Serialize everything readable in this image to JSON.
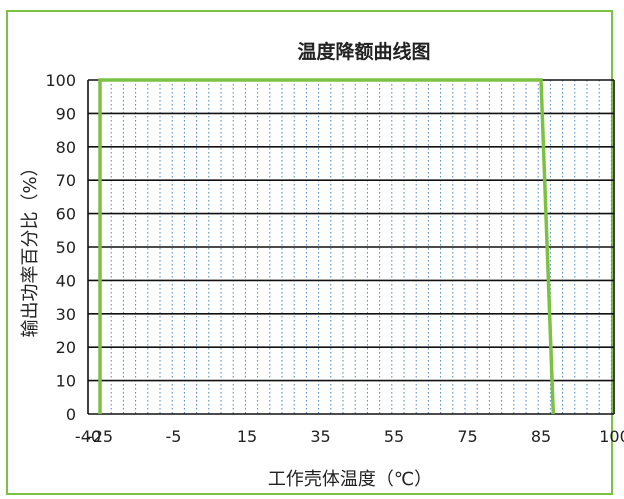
{
  "chart_data": {
    "type": "line",
    "title": "温度降额曲线图",
    "xlabel": "工作壳体温度（℃）",
    "ylabel": "输出功率百分比（%）",
    "x_tick_labels": [
      "-40",
      "-25",
      "-5",
      "15",
      "35",
      "55",
      "75",
      "85",
      "100"
    ],
    "y_ticks": [
      0,
      10,
      20,
      30,
      40,
      50,
      60,
      70,
      80,
      90,
      100
    ],
    "xlim": [
      -40,
      100
    ],
    "ylim": [
      0,
      100
    ],
    "grid": {
      "horizontal": "solid",
      "vertical": "dotted"
    },
    "series": [
      {
        "color": "#7cc242",
        "points": [
          [
            -25,
            0
          ],
          [
            -25,
            100
          ],
          [
            85,
            100
          ],
          [
            87.5,
            0
          ]
        ]
      }
    ]
  }
}
